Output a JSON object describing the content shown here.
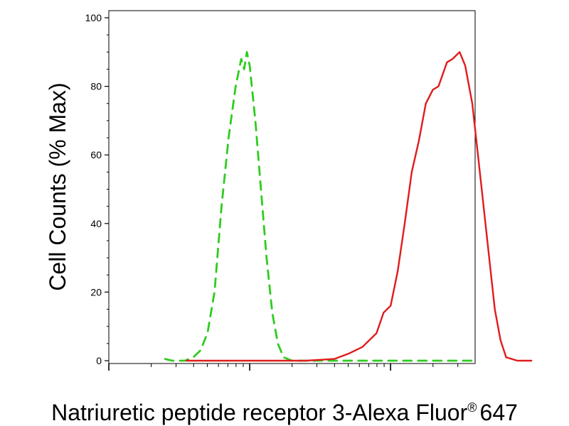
{
  "chart_data": {
    "type": "area",
    "title": "",
    "xlabel": "Natriuretic peptide receptor 3-Alexa Fluor",
    "xlabel_superscript": "®",
    "xlabel_suffix": "647",
    "ylabel": "Cell Counts (% Max)",
    "ylim": [
      0,
      100
    ],
    "yticks": [
      0,
      20,
      40,
      60,
      80,
      100
    ],
    "xscale": "log",
    "xlim": [
      -1,
      1.6
    ],
    "xticks_major": [
      0,
      1
    ],
    "xtick_labels": [],
    "grid": false,
    "legend": "none",
    "series": [
      {
        "color": "#2ecc1f",
        "style": "dashed",
        "points": [
          [
            -0.6,
            0.5
          ],
          [
            -0.55,
            0
          ],
          [
            -0.46,
            0
          ],
          [
            -0.4,
            1
          ],
          [
            -0.35,
            3
          ],
          [
            -0.3,
            8
          ],
          [
            -0.25,
            20
          ],
          [
            -0.2,
            45
          ],
          [
            -0.15,
            65
          ],
          [
            -0.1,
            80
          ],
          [
            -0.06,
            88
          ],
          [
            -0.04,
            85
          ],
          [
            -0.02,
            90
          ],
          [
            0.0,
            86
          ],
          [
            0.04,
            70
          ],
          [
            0.08,
            50
          ],
          [
            0.12,
            30
          ],
          [
            0.16,
            14
          ],
          [
            0.2,
            5
          ],
          [
            0.24,
            1
          ],
          [
            0.3,
            0
          ],
          [
            0.6,
            0
          ],
          [
            1.0,
            0
          ],
          [
            1.2,
            0
          ],
          [
            1.4,
            0
          ],
          [
            1.6,
            0
          ]
        ]
      },
      {
        "color": "#e01b1b",
        "style": "solid",
        "points": [
          [
            -0.45,
            0
          ],
          [
            -0.2,
            0
          ],
          [
            0.0,
            0
          ],
          [
            0.2,
            0
          ],
          [
            0.4,
            0
          ],
          [
            0.6,
            0.5
          ],
          [
            0.7,
            2
          ],
          [
            0.8,
            4
          ],
          [
            0.9,
            8
          ],
          [
            0.95,
            14
          ],
          [
            1.0,
            16
          ],
          [
            1.05,
            26
          ],
          [
            1.1,
            40
          ],
          [
            1.15,
            55
          ],
          [
            1.2,
            64
          ],
          [
            1.25,
            75
          ],
          [
            1.3,
            79
          ],
          [
            1.34,
            80
          ],
          [
            1.4,
            87
          ],
          [
            1.44,
            88
          ],
          [
            1.49,
            90
          ],
          [
            1.53,
            86
          ],
          [
            1.58,
            75
          ],
          [
            1.62,
            60
          ],
          [
            1.66,
            45
          ],
          [
            1.7,
            30
          ],
          [
            1.74,
            15
          ],
          [
            1.78,
            6
          ],
          [
            1.82,
            1
          ],
          [
            1.9,
            0
          ],
          [
            2.0,
            0
          ]
        ]
      }
    ]
  }
}
